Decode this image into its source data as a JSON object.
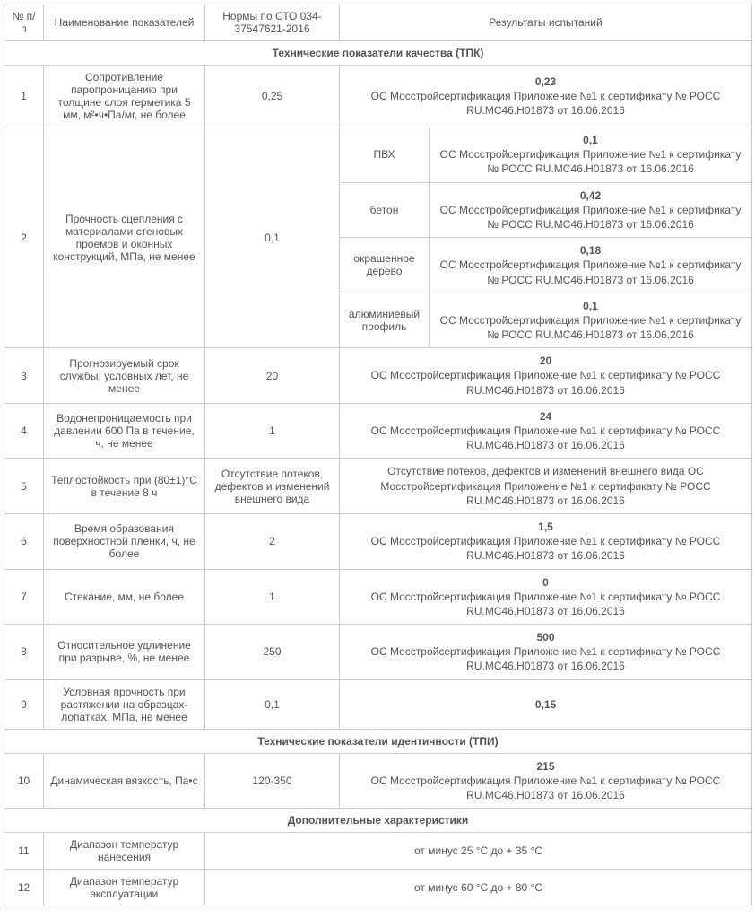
{
  "headers": {
    "num": "№ п/п",
    "name": "Наименование показателей",
    "norm": "Нормы по СТО 034-37547621-2016",
    "results": "Результаты испытаний"
  },
  "sections": {
    "tpk": "Технические показатели качества (ТПК)",
    "tpi": "Технические показатели идентичности (ТПИ)",
    "extra": "Дополнительные характеристики"
  },
  "cert": "ОС Мосстройсертификация Приложение №1 к сертификату № РОСС RU.МС46.Н01873 от 16.06.2016",
  "row1": {
    "num": "1",
    "name": "Сопротивление паропроницанию при толщине слоя герметика 5 мм, м²•ч•Па/мг, не более",
    "norm": "0,25",
    "val": "0,23"
  },
  "row2": {
    "num": "2",
    "name": "Прочность сцепления с материалами стеновых проемов и оконных конструкций, МПа, не менее",
    "norm": "0,1",
    "sub": {
      "a": {
        "mat": "ПВХ",
        "val": "0,1"
      },
      "b": {
        "mat": "бетон",
        "val": "0,42"
      },
      "c": {
        "mat": "окрашенное дерево",
        "val": "0,18"
      },
      "d": {
        "mat": "алюминиевый профиль",
        "val": "0,1"
      }
    }
  },
  "row3": {
    "num": "3",
    "name": "Прогнозируемый срок службы, условных лет, не менее",
    "norm": "20",
    "val": "20"
  },
  "row4": {
    "num": "4",
    "name": "Водонепроницаемость при давлении 600 Па в течение, ч, не менее",
    "norm": "1",
    "val": "24"
  },
  "row5": {
    "num": "5",
    "name": "Теплостойкость при (80±1)°С в течение 8 ч",
    "norm": "Отсутствие потеков, дефектов и изменений внешнего вида",
    "result": "Отсутствие потеков, дефектов и изменений внешнего вида ОС Мосстройсертификация Приложение №1 к сертификату № РОСС RU.МС46.Н01873 от 16.06.2016"
  },
  "row6": {
    "num": "6",
    "name": "Время образования поверхностной пленки, ч, не более",
    "norm": "2",
    "val": "1,5"
  },
  "row7": {
    "num": "7",
    "name": "Стекание, мм, не более",
    "norm": "1",
    "val": "0"
  },
  "row8": {
    "num": "8",
    "name": "Относительное удлинение при разрыве, %, не менее",
    "norm": "250",
    "val": "500"
  },
  "row9": {
    "num": "9",
    "name": "Условная прочность при растяжении на образцах-лопатках, МПа, не менее",
    "norm": "0,1",
    "val": "0,15"
  },
  "row10": {
    "num": "10",
    "name": "Динамическая вязкость, Па•с",
    "norm": "120-350",
    "val": "215"
  },
  "row11": {
    "num": "11",
    "name": "Диапазон температур нанесения",
    "result": "от минус 25 °С до + 35 °С"
  },
  "row12": {
    "num": "12",
    "name": "Диапазон температур эксплуатации",
    "result": "от минус 60 °С до + 80 °С"
  }
}
